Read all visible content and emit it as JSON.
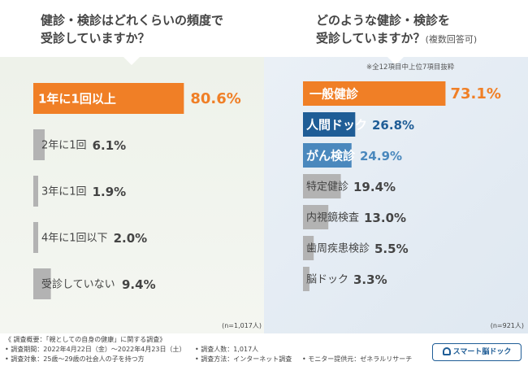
{
  "questions": {
    "left_title_line1": "健診・検診はどれくらいの頻度で",
    "left_title_line2": "受診していますか？",
    "right_title_line1": "どのような健診・検診を",
    "right_title_line2": "受診していますか？",
    "right_title_suffix": "(複数回答可)",
    "right_note": "※全12項目中上位7項目抜粋"
  },
  "colors": {
    "orange": "#f07f26",
    "blue_dark": "#1f5d96",
    "blue_mid": "#4a88bd",
    "gray": "#b3b3b3"
  },
  "chart_data": [
    {
      "type": "bar",
      "orientation": "horizontal",
      "categories": [
        "1年に1回以上",
        "2年に1回",
        "3年に1回",
        "4年に1回以下",
        "受診していない"
      ],
      "values": [
        80.6,
        6.1,
        1.9,
        2.0,
        9.4
      ],
      "value_labels": [
        "80.6%",
        "6.1%",
        "1.9%",
        "2.0%",
        "9.4%"
      ],
      "n_label": "(n=1,017人)"
    },
    {
      "type": "bar",
      "orientation": "horizontal",
      "categories": [
        "一般健診",
        "人間ドック",
        "がん検診",
        "特定健診",
        "内視鏡検査",
        "歯周疾患検診",
        "脳ドック"
      ],
      "values": [
        73.1,
        26.8,
        24.9,
        19.4,
        13.0,
        5.5,
        3.3
      ],
      "value_labels": [
        "73.1%",
        "26.8%",
        "24.9%",
        "19.4%",
        "13.0%",
        "5.5%",
        "3.3%"
      ],
      "n_label": "(n=921人)"
    }
  ],
  "footer": {
    "line1": "《 調査概要：「親としての自身の健康」に関する調査》",
    "line2a": "• 調査期間：2022年4月22日（金）〜2022年4月23日（土）",
    "line2b": "• 調査人数：1,017人",
    "line3a": "• 調査対象：25歳〜29歳の社会人の子を持つ方",
    "line3b": "• 調査方法：インターネット調査",
    "line3c": "• モニター提供元：ゼネラルリサーチ",
    "logo": "スマート脳ドック"
  }
}
